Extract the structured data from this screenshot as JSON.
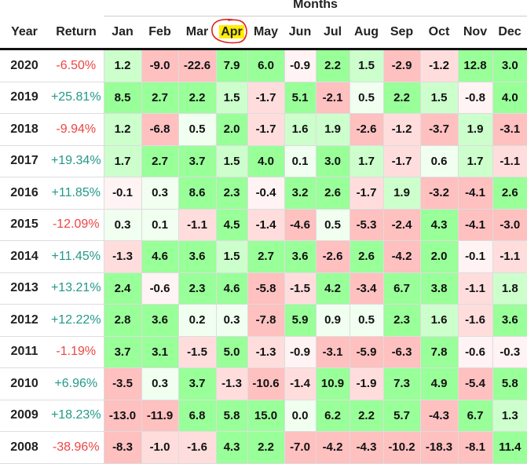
{
  "header": {
    "group_label": "Months",
    "year_label": "Year",
    "return_label": "Return",
    "highlighted_month": "Apr"
  },
  "months": [
    "Jan",
    "Feb",
    "Mar",
    "Apr",
    "May",
    "Jun",
    "Jul",
    "Aug",
    "Sep",
    "Oct",
    "Nov",
    "Dec"
  ],
  "colors": {
    "positive_text": "#229988",
    "negative_text": "#ee4444",
    "green_strong": "#99ff99",
    "green_mid": "#ccffcc",
    "green_faint": "#f0fff0",
    "red_strong": "#ffc0c0",
    "red_mid": "#ffdddd",
    "red_faint": "#fff3f3",
    "highlight": "#ffee00",
    "annotation": "#e02020"
  },
  "rows": [
    {
      "year": "2020",
      "return": "-6.50%",
      "values": [
        "1.2",
        "-9.0",
        "-22.6",
        "7.9",
        "6.0",
        "-0.9",
        "2.2",
        "1.5",
        "-2.9",
        "-1.2",
        "12.8",
        "3.0"
      ]
    },
    {
      "year": "2019",
      "return": "+25.81%",
      "values": [
        "8.5",
        "2.7",
        "2.2",
        "1.5",
        "-1.7",
        "5.1",
        "-2.1",
        "0.5",
        "2.2",
        "1.5",
        "-0.8",
        "4.0"
      ]
    },
    {
      "year": "2018",
      "return": "-9.94%",
      "values": [
        "1.2",
        "-6.8",
        "0.5",
        "2.0",
        "-1.7",
        "1.6",
        "1.9",
        "-2.6",
        "-1.2",
        "-3.7",
        "1.9",
        "-3.1"
      ]
    },
    {
      "year": "2017",
      "return": "+19.34%",
      "values": [
        "1.7",
        "2.7",
        "3.7",
        "1.5",
        "4.0",
        "0.1",
        "3.0",
        "1.7",
        "-1.7",
        "0.6",
        "1.7",
        "-1.1"
      ]
    },
    {
      "year": "2016",
      "return": "+11.85%",
      "values": [
        "-0.1",
        "0.3",
        "8.6",
        "2.3",
        "-0.4",
        "3.2",
        "2.6",
        "-1.7",
        "1.9",
        "-3.2",
        "-4.1",
        "2.6"
      ]
    },
    {
      "year": "2015",
      "return": "-12.09%",
      "values": [
        "0.3",
        "0.1",
        "-1.1",
        "4.5",
        "-1.4",
        "-4.6",
        "0.5",
        "-5.3",
        "-2.4",
        "4.3",
        "-4.1",
        "-3.0"
      ]
    },
    {
      "year": "2014",
      "return": "+11.45%",
      "values": [
        "-1.3",
        "4.6",
        "3.6",
        "1.5",
        "2.7",
        "3.6",
        "-2.6",
        "2.6",
        "-4.2",
        "2.0",
        "-0.1",
        "-1.1"
      ]
    },
    {
      "year": "2013",
      "return": "+13.21%",
      "values": [
        "2.4",
        "-0.6",
        "2.3",
        "4.6",
        "-5.8",
        "-1.5",
        "4.2",
        "-3.4",
        "6.7",
        "3.8",
        "-1.1",
        "1.8"
      ]
    },
    {
      "year": "2012",
      "return": "+12.22%",
      "values": [
        "2.8",
        "3.6",
        "0.2",
        "0.3",
        "-7.8",
        "5.9",
        "0.9",
        "0.5",
        "2.3",
        "1.6",
        "-1.6",
        "3.6"
      ]
    },
    {
      "year": "2011",
      "return": "-1.19%",
      "values": [
        "3.7",
        "3.1",
        "-1.5",
        "5.0",
        "-1.3",
        "-0.9",
        "-3.1",
        "-5.9",
        "-6.3",
        "7.8",
        "-0.6",
        "-0.3"
      ]
    },
    {
      "year": "2010",
      "return": "+6.96%",
      "values": [
        "-3.5",
        "0.3",
        "3.7",
        "-1.3",
        "-10.6",
        "-1.4",
        "10.9",
        "-1.9",
        "7.3",
        "4.9",
        "-5.4",
        "5.8"
      ]
    },
    {
      "year": "2009",
      "return": "+18.23%",
      "values": [
        "-13.0",
        "-11.9",
        "6.8",
        "5.8",
        "15.0",
        "0.0",
        "6.2",
        "2.2",
        "5.7",
        "-4.3",
        "6.7",
        "1.3"
      ]
    },
    {
      "year": "2008",
      "return": "-38.96%",
      "values": [
        "-8.3",
        "-1.0",
        "-1.6",
        "4.3",
        "2.2",
        "-7.0",
        "-4.2",
        "-4.3",
        "-10.2",
        "-18.3",
        "-8.1",
        "11.4"
      ]
    }
  ]
}
